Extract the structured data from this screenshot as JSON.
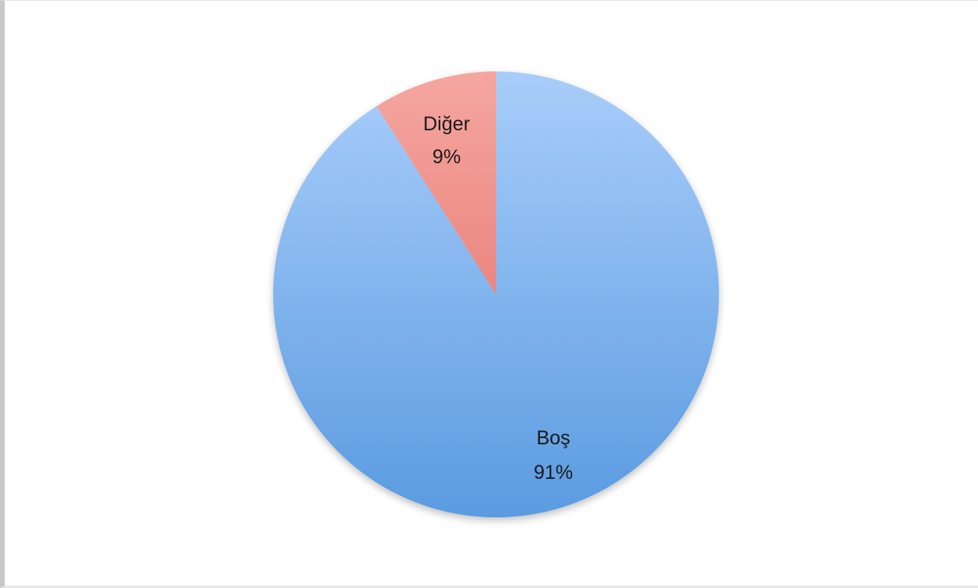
{
  "chart_data": {
    "type": "pie",
    "title": "",
    "start": "12 o'clock",
    "direction": "clockwise",
    "slices": [
      {
        "label": "Boş",
        "value_label": "91%",
        "value": 91,
        "color_top": "#a9cdfa",
        "color_bottom": "#5a9be0"
      },
      {
        "label": "Diğer",
        "value_label": "9%",
        "value": 9,
        "color_top": "#f5a6a0",
        "color_bottom": "#e0675f"
      }
    ]
  }
}
